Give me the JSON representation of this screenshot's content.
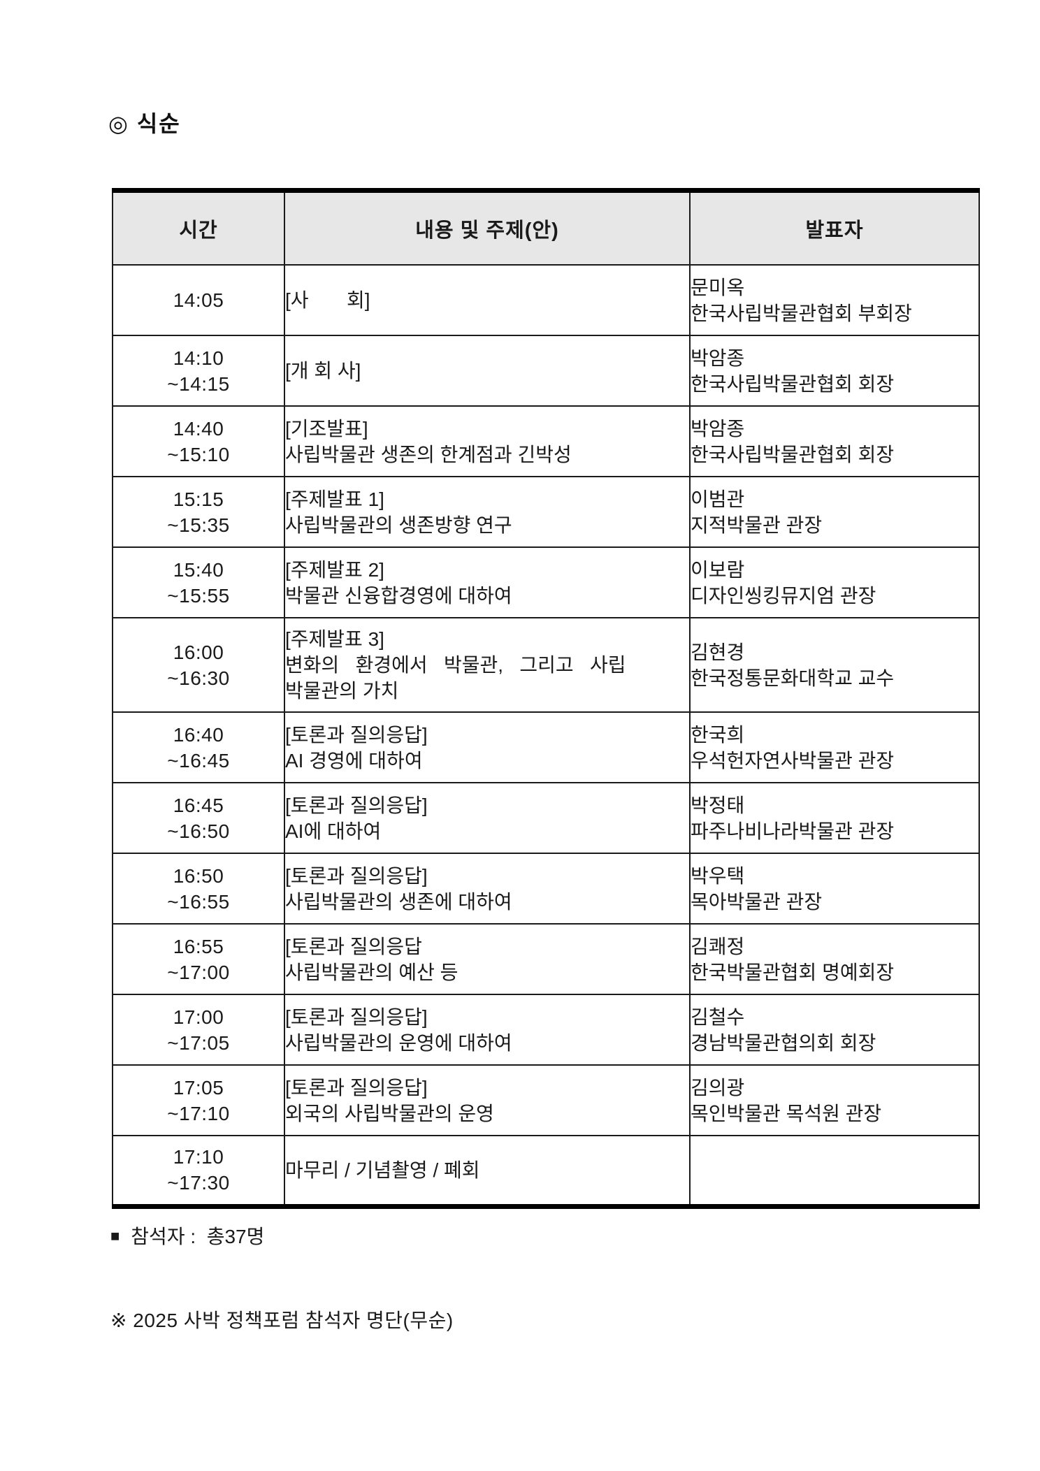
{
  "page": {
    "title": "◎ 식순"
  },
  "table": {
    "headers": [
      "시간",
      "내용 및 주제(안)",
      "발표자"
    ],
    "rows": [
      {
        "time": [
          "14:05"
        ],
        "content": [
          "[사       회]"
        ],
        "presenter": [
          "문미옥",
          "한국사립박물관협회 부회장"
        ]
      },
      {
        "time": [
          "14:10",
          "~14:15"
        ],
        "content": [
          "[개 회 사]"
        ],
        "presenter": [
          "박암종",
          "한국사립박물관협회 회장"
        ]
      },
      {
        "time": [
          "14:40",
          "~15:10"
        ],
        "content": [
          "[기조발표]",
          "사립박물관 생존의 한계점과 긴박성"
        ],
        "presenter": [
          "박암종",
          "한국사립박물관협회 회장"
        ]
      },
      {
        "time": [
          "15:15",
          "~15:35"
        ],
        "content": [
          "[주제발표 1]",
          "사립박물관의 생존방향 연구"
        ],
        "presenter": [
          "이범관",
          "지적박물관 관장"
        ]
      },
      {
        "time": [
          "15:40",
          "~15:55"
        ],
        "content": [
          "[주제발표 2]",
          "박물관 신융합경영에 대하여"
        ],
        "presenter": [
          "이보람",
          "디자인씽킹뮤지엄 관장"
        ]
      },
      {
        "time": [
          "16:00",
          "~16:30"
        ],
        "content": [
          "[주제발표 3]",
          "변화의   환경에서   박물관,   그리고   사립",
          "박물관의 가치"
        ],
        "presenter": [
          "김현경",
          "한국정통문화대학교 교수"
        ]
      },
      {
        "time": [
          "16:40",
          "~16:45"
        ],
        "content": [
          "[토론과 질의응답]",
          "AI 경영에 대하여"
        ],
        "presenter": [
          "한국희",
          "우석헌자연사박물관 관장"
        ]
      },
      {
        "time": [
          "16:45",
          "~16:50"
        ],
        "content": [
          "[토론과 질의응답]",
          "AI에 대하여"
        ],
        "presenter": [
          "박정태",
          "파주나비나라박물관 관장"
        ]
      },
      {
        "time": [
          "16:50",
          "~16:55"
        ],
        "content": [
          "[토론과 질의응답]",
          "사립박물관의 생존에 대하여"
        ],
        "presenter": [
          "박우택",
          "목아박물관 관장"
        ]
      },
      {
        "time": [
          "16:55",
          "~17:00"
        ],
        "content": [
          "[토론과 질의응답",
          "사립박물관의 예산 등"
        ],
        "presenter": [
          "김쾌정",
          "한국박물관협회 명예회장"
        ]
      },
      {
        "time": [
          "17:00",
          "~17:05"
        ],
        "content": [
          "[토론과 질의응답]",
          "사립박물관의 운영에 대하여"
        ],
        "presenter": [
          "김철수",
          "경남박물관협의회 회장"
        ]
      },
      {
        "time": [
          "17:05",
          "~17:10"
        ],
        "content": [
          "[토론과 질의응답]",
          "외국의 사립박물관의 운영"
        ],
        "presenter": [
          "김의광",
          "목인박물관 목석원 관장"
        ]
      },
      {
        "time": [
          "17:10",
          "~17:30"
        ],
        "content": [
          "마무리 / 기념촬영 / 폐회"
        ],
        "presenter": []
      }
    ]
  },
  "footer": {
    "attendees_bullet": "■",
    "attendees_text": "참석자 :  총37명",
    "note": "※ 2025 사박 정책포럼 참석자 명단(무순)"
  }
}
